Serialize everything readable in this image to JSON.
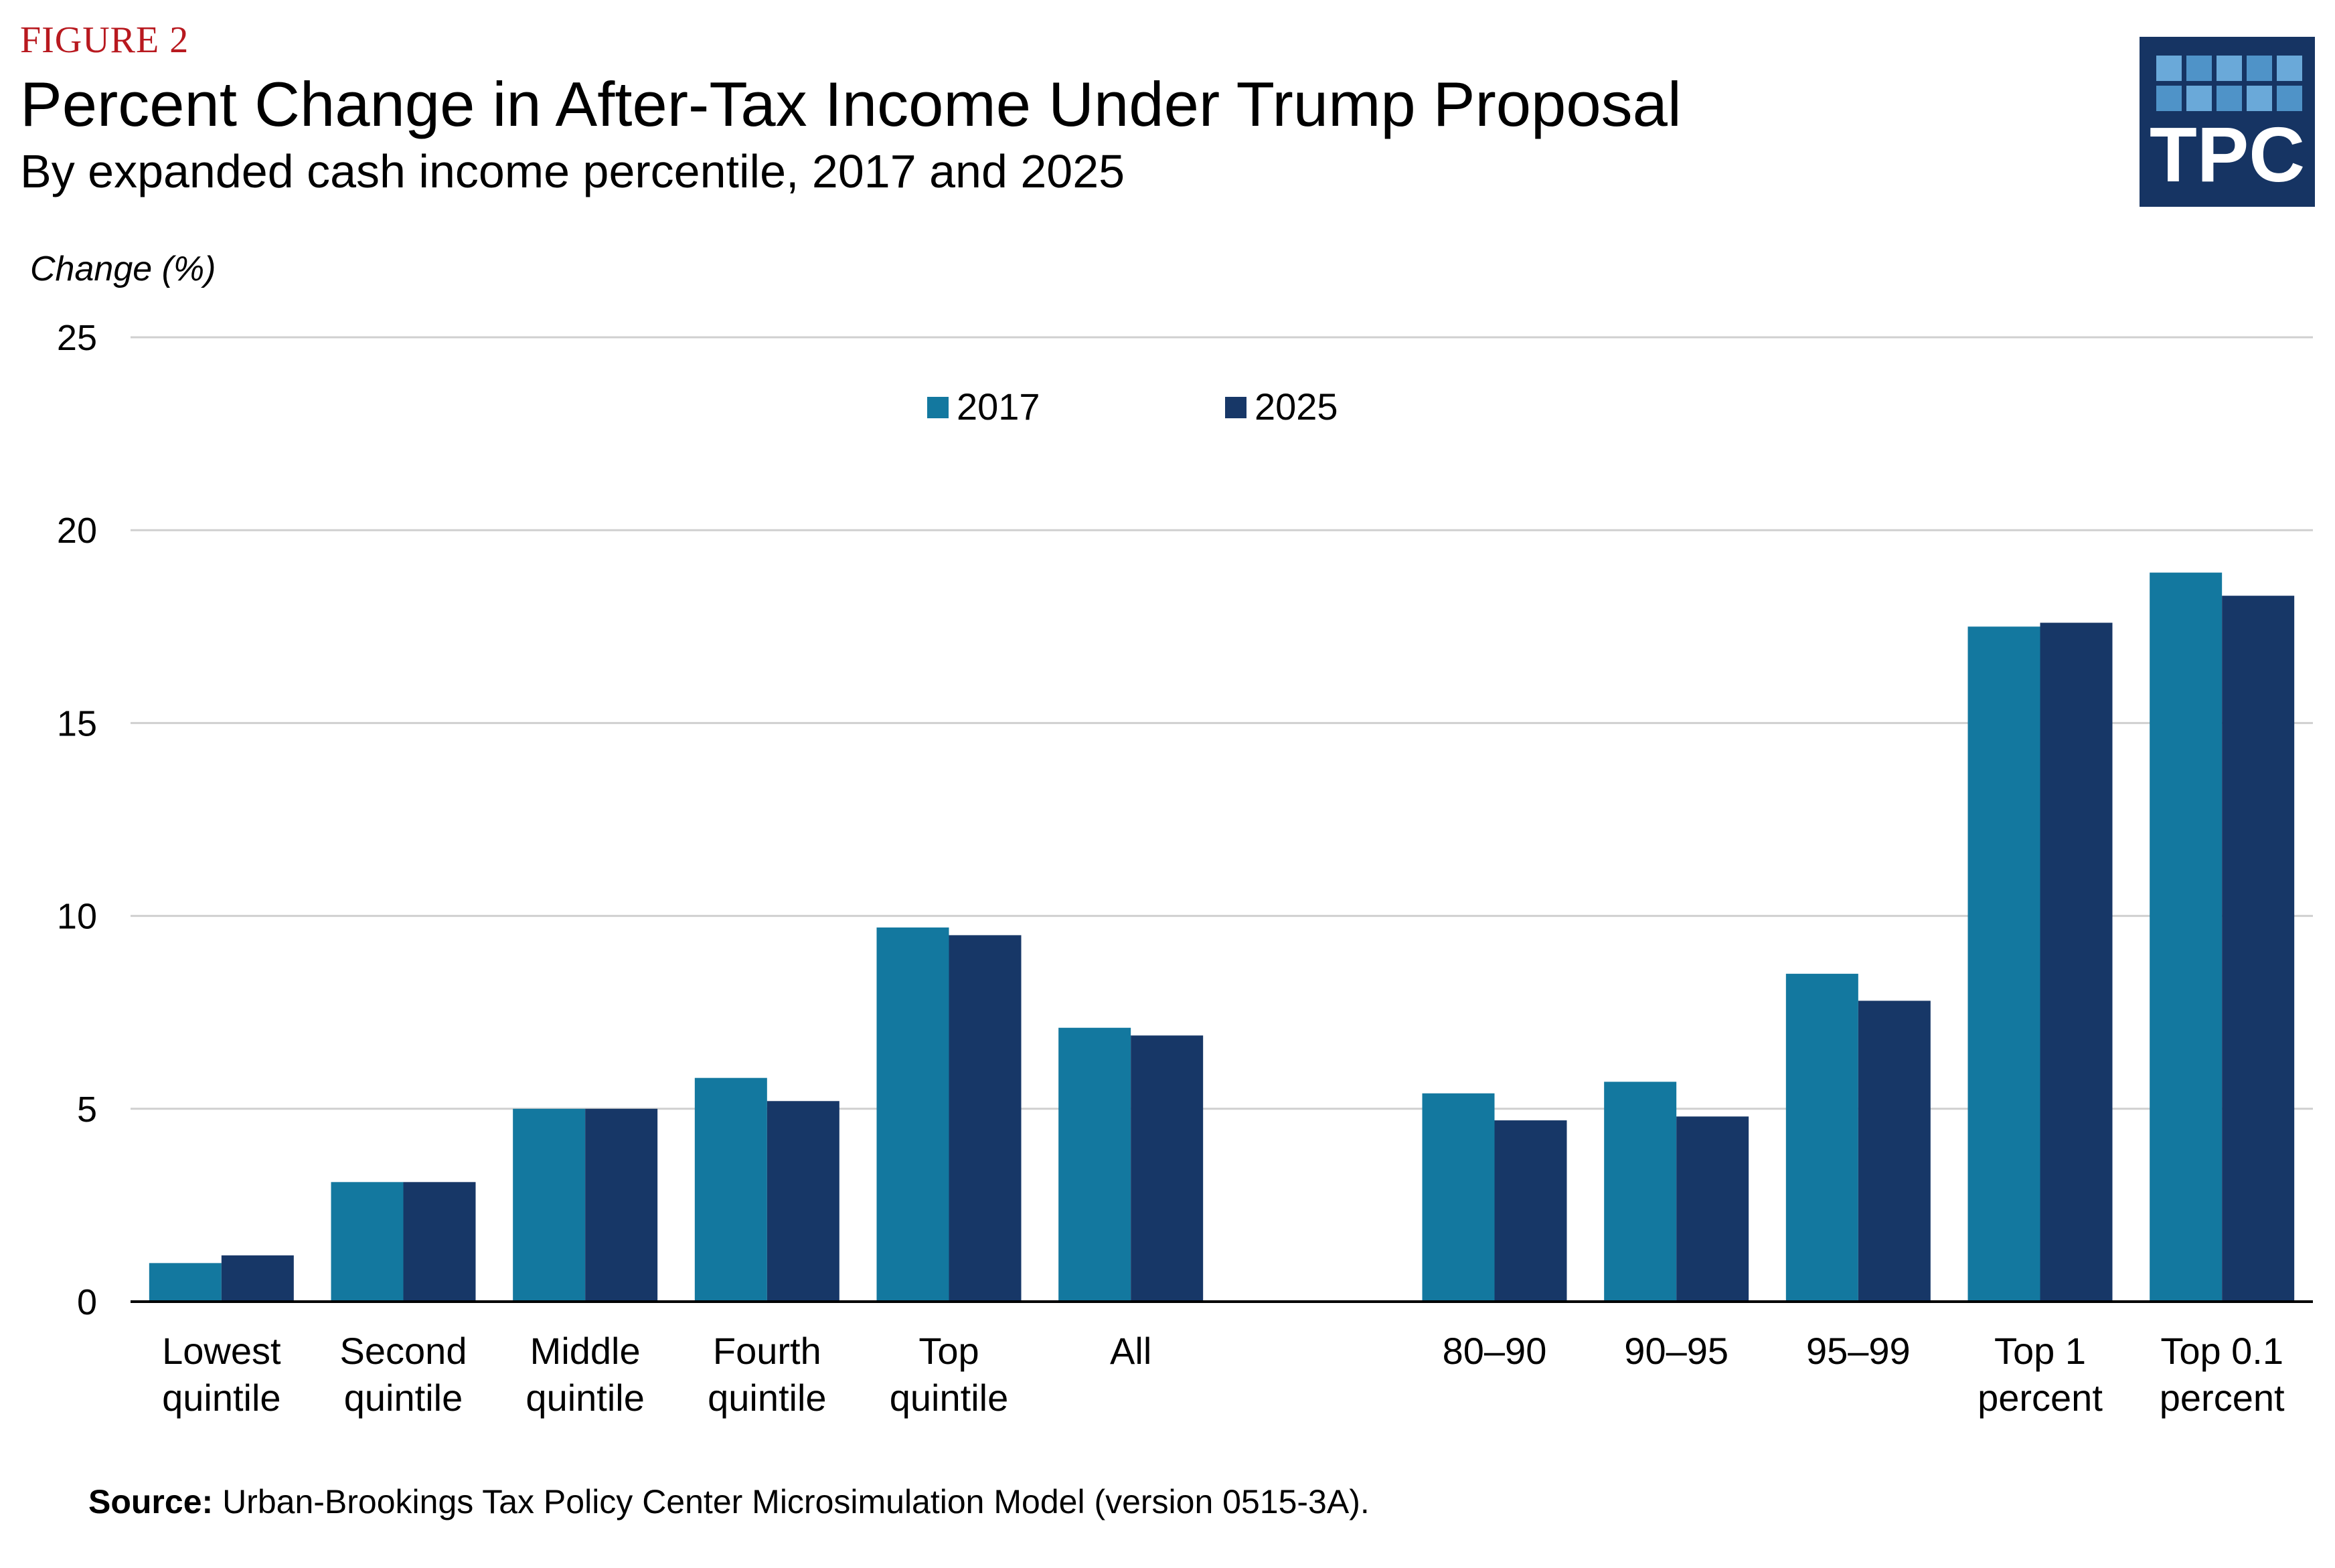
{
  "figure_label": "FIGURE 2",
  "title": "Percent Change in After-Tax Income Under Trump Proposal",
  "subtitle": "By expanded cash income percentile, 2017 and 2025",
  "logo_text": "TPC",
  "source_label": "Source:",
  "source_text": "Urban-Brookings Tax Policy Center Microsimulation Model (version 0515-3A).",
  "colors": {
    "series_2017": "#13789f",
    "series_2025": "#173767",
    "gridline": "#d0d0d0",
    "axis": "#000000",
    "figure_label": "#b8191f",
    "logo_bg": "#163463"
  },
  "chart_data": {
    "type": "bar",
    "title": "Percent Change in After-Tax Income Under Trump Proposal",
    "ylabel": "Change (%)",
    "xlabel": "",
    "ylim": [
      0,
      25
    ],
    "yticks": [
      0,
      5,
      10,
      15,
      20,
      25
    ],
    "grid": true,
    "legend_position": "top-center",
    "categories": [
      [
        "Lowest",
        "quintile"
      ],
      [
        "Second",
        "quintile"
      ],
      [
        "Middle",
        "quintile"
      ],
      [
        "Fourth",
        "quintile"
      ],
      [
        "Top",
        "quintile"
      ],
      [
        "All"
      ],
      [
        "80–90"
      ],
      [
        "90–95"
      ],
      [
        "95–99"
      ],
      [
        "Top 1",
        "percent"
      ],
      [
        "Top 0.1",
        "percent"
      ]
    ],
    "gap_after_index": 5,
    "series": [
      {
        "name": "2017",
        "values": [
          1.0,
          3.1,
          5.0,
          5.8,
          9.7,
          7.1,
          5.4,
          5.7,
          8.5,
          17.5,
          18.9
        ]
      },
      {
        "name": "2025",
        "values": [
          1.2,
          3.1,
          5.0,
          5.2,
          9.5,
          6.9,
          4.7,
          4.8,
          7.8,
          17.6,
          18.3
        ]
      }
    ]
  }
}
